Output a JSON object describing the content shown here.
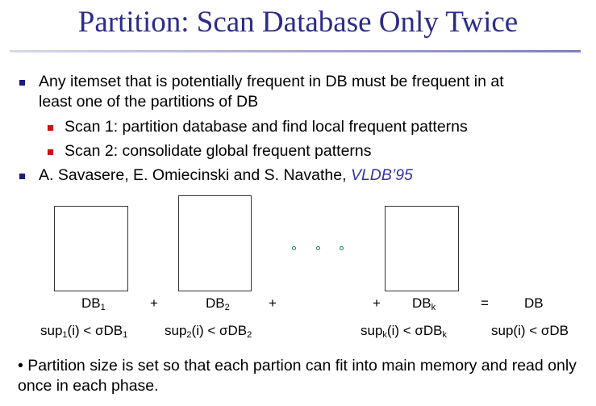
{
  "slide": {
    "title": "Partition: Scan Database Only Twice",
    "colors": {
      "title": "#2b2c8a",
      "bullet_level1": "#1c1c7a",
      "bullet_level2": "#d01010",
      "reference": "#3333aa"
    },
    "bullets": [
      {
        "line1": "Any itemset that is potentially frequent in DB must be frequent in at",
        "line2": "least one of the partitions of DB",
        "sub": [
          "Scan 1: partition database and find local frequent patterns",
          "Scan 2: consolidate global frequent patterns"
        ]
      },
      {
        "authors": "A. Savasere, E. Omiecinski and S. Navathe, ",
        "venue": "VLDB’95"
      }
    ],
    "diagram": {
      "ellipsis_dots": 3,
      "partitions": [
        {
          "db": "DB",
          "db_sub": "1",
          "sup": "sup",
          "sup_sub": "1",
          "cond": "(i) < σDB",
          "cond_sub": "1"
        },
        {
          "db": "DB",
          "db_sub": "2",
          "sup": "sup",
          "sup_sub": "2",
          "cond": "(i) < σDB",
          "cond_sub": "2"
        },
        {
          "db": "DB",
          "db_sub": "k",
          "sup": "sup",
          "sup_sub": "k",
          "cond": "(i) < σDB",
          "cond_sub": "k"
        }
      ],
      "plus": "+",
      "equals": "=",
      "total": {
        "db": "DB",
        "cond": "sup(i) < σDB"
      }
    },
    "note": "• Partition size is set so that each partion can fit into main memory and read only once in each phase."
  }
}
